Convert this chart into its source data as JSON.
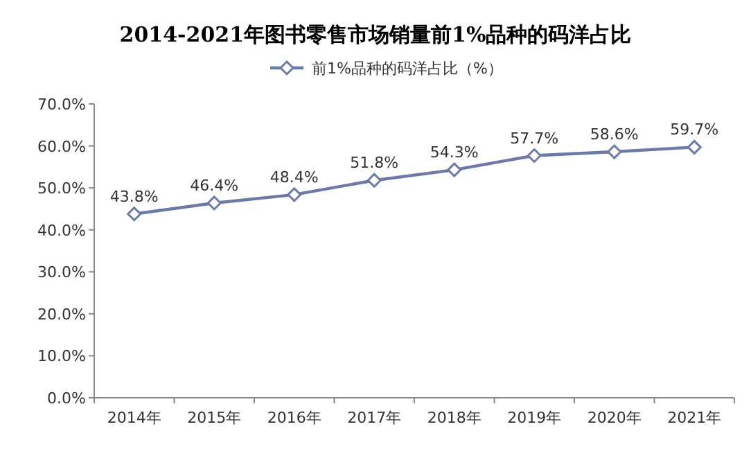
{
  "chart_data": {
    "type": "line",
    "title": "2014-2021年图书零售市场销量前1%品种的码洋占比",
    "categories": [
      "2014年",
      "2015年",
      "2016年",
      "2017年",
      "2018年",
      "2019年",
      "2020年",
      "2021年"
    ],
    "series": [
      {
        "name": "前1%品种的码洋占比（%）",
        "color": "#6b7aa6",
        "values": [
          43.8,
          46.4,
          48.4,
          51.8,
          54.3,
          57.7,
          58.6,
          59.7
        ],
        "value_labels": [
          "43.8%",
          "46.4%",
          "48.4%",
          "51.8%",
          "54.3%",
          "57.7%",
          "58.6%",
          "59.7%"
        ]
      }
    ],
    "ylim": [
      0,
      70
    ],
    "yticks": [
      {
        "value": 0,
        "label": "0.0%"
      },
      {
        "value": 10,
        "label": "10.0%"
      },
      {
        "value": 20,
        "label": "20.0%"
      },
      {
        "value": 30,
        "label": "30.0%"
      },
      {
        "value": 40,
        "label": "40.0%"
      },
      {
        "value": 50,
        "label": "50.0%"
      },
      {
        "value": 60,
        "label": "60.0%"
      },
      {
        "value": 70,
        "label": "70.0%"
      }
    ],
    "legend": "top",
    "marker": "diamond",
    "line_style": "solid"
  }
}
